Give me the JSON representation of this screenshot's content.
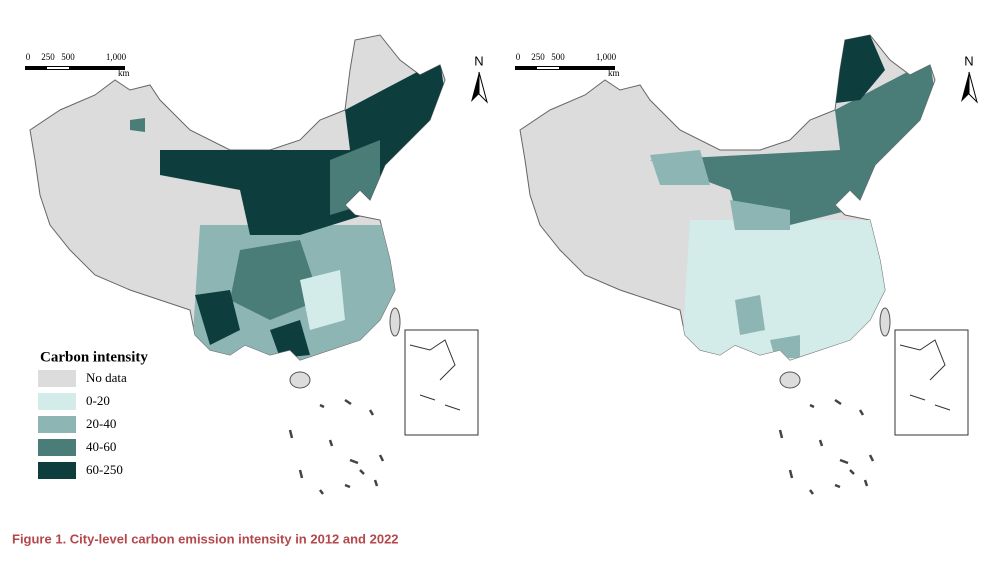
{
  "maps": [
    {
      "scale_bar": {
        "labels": [
          "0",
          "250",
          "500",
          "1,000"
        ],
        "unit": "km"
      },
      "north_label": "N"
    },
    {
      "scale_bar": {
        "labels": [
          "0",
          "250",
          "500",
          "1,000"
        ],
        "unit": "km"
      },
      "north_label": "N"
    }
  ],
  "legend": {
    "title": "Carbon intensity",
    "items": [
      {
        "label": "No data",
        "color": "#dcdcdc"
      },
      {
        "label": "0-20",
        "color": "#d3ebe9"
      },
      {
        "label": "20-40",
        "color": "#8db5b3"
      },
      {
        "label": "40-60",
        "color": "#4a7c78"
      },
      {
        "label": "60-250",
        "color": "#0d3d3d"
      }
    ]
  },
  "caption": "Figure 1.  City-level carbon emission intensity in 2012 and 2022"
}
